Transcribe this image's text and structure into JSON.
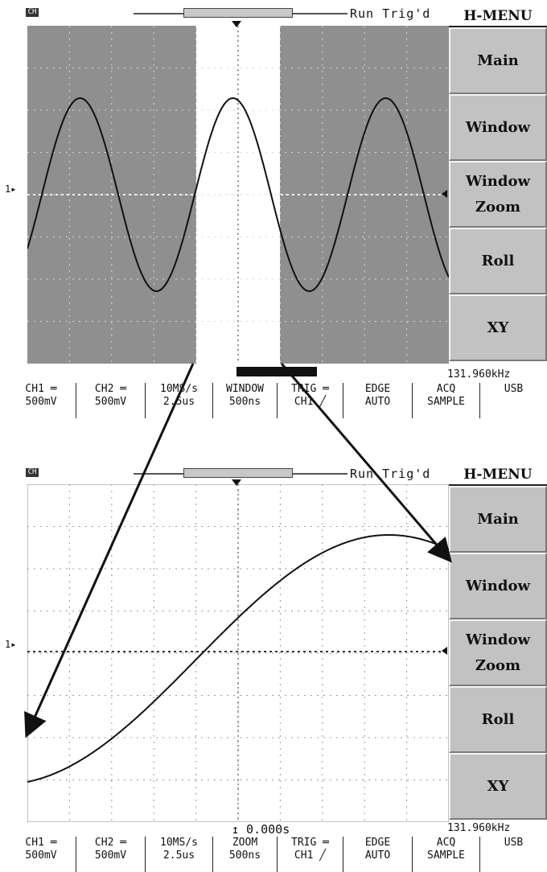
{
  "top": {
    "channel_icon": "CH",
    "run_status": "Run Trig'd",
    "hmenu_title": "H-MENU",
    "softkeys": [
      "Main",
      "Window",
      "Window\nZoom",
      "Roll",
      "XY"
    ],
    "frequency": "131.960kHz",
    "status": [
      {
        "l1": "CH1 ═",
        "l2": "500mV"
      },
      {
        "l1": "CH2 ═",
        "l2": "500mV"
      },
      {
        "l1": "10MS/s",
        "l2": "2.5us"
      },
      {
        "l1": "WINDOW",
        "l2": "500ns"
      },
      {
        "l1": "TRIG ═",
        "l2": "CH1 ╱"
      },
      {
        "l1": "EDGE",
        "l2": "AUTO"
      },
      {
        "l1": "ACQ",
        "l2": "SAMPLE"
      },
      {
        "l1": "USB",
        "l2": ""
      }
    ],
    "ch_marker": "1▸"
  },
  "bottom": {
    "channel_icon": "CH",
    "run_status": "Run Trig'd",
    "hmenu_title": "H-MENU",
    "softkeys": [
      "Main",
      "Window",
      "Window\nZoom",
      "Roll",
      "XY"
    ],
    "frequency": "131.960kHz",
    "time_position": "↥ 0.000s",
    "status": [
      {
        "l1": "CH1 ═",
        "l2": "500mV"
      },
      {
        "l1": "CH2 ═",
        "l2": "500mV"
      },
      {
        "l1": "10MS/s",
        "l2": "2.5us"
      },
      {
        "l1": "ZOOM",
        "l2": "500ns"
      },
      {
        "l1": "TRIG ═",
        "l2": "CH1 ╱"
      },
      {
        "l1": "EDGE",
        "l2": "AUTO"
      },
      {
        "l1": "ACQ",
        "l2": "SAMPLE"
      },
      {
        "l1": "USB",
        "l2": ""
      }
    ],
    "ch_marker": "1▸"
  },
  "colors": {
    "screen_bg": "#8f8f8f",
    "window_bg": "#ffffff",
    "trace": "#111111",
    "grid": "#d8d8d8"
  }
}
